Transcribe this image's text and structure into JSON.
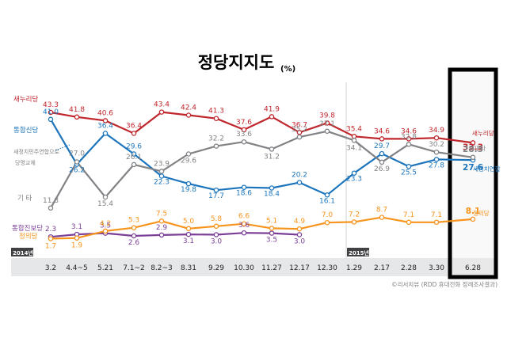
{
  "chart_data": {
    "type": "line",
    "title": "정당지지도",
    "title_unit": "(%)",
    "source": "©리서치뷰 (RDD 휴대전화 정례조사결과)",
    "year_labels": [
      "2014년",
      "2015년"
    ],
    "categories": [
      "3.2",
      "4.4~5",
      "5.21",
      "7.1~2",
      "8.2~3",
      "8.31",
      "9.29",
      "10.30",
      "11.27",
      "12.17",
      "12.30",
      "1.29",
      "2.17",
      "2.28",
      "3.30",
      "6.28"
    ],
    "ylim": [
      0,
      48
    ],
    "grid": false,
    "highlight_category": "6.28",
    "series": [
      {
        "name": "새누리당",
        "color": "#c0272d",
        "values": [
          43.3,
          41.8,
          40.6,
          36.4,
          43.4,
          42.4,
          41.3,
          37.6,
          41.9,
          36.7,
          39.8,
          35.4,
          34.6,
          34.6,
          34.9,
          33.3
        ],
        "labels": [
          "43.3",
          "41.8",
          "40.6",
          "36.4",
          "43.4",
          "42.4",
          "41.3",
          "37.6",
          "41.9",
          "36.7",
          "39.8",
          "35.4",
          "34.6",
          "34.6",
          "34.9",
          "33.3"
        ]
      },
      {
        "name": "통합신당",
        "color": "#1c75bc",
        "values": [
          41.0,
          26.2,
          36.4,
          29.6,
          22.3,
          19.8,
          17.7,
          18.6,
          18.4,
          20.2,
          16.1,
          23.3,
          29.7,
          25.5,
          27.8,
          27.6
        ],
        "labels": [
          "41.0",
          "26.2",
          "36.4",
          "29.6",
          "22.3",
          "19.8",
          "17.7",
          "18.6",
          "18.4",
          "20.2",
          "16.1",
          "23.3",
          "29.7",
          "25.5",
          "27.8",
          "27.6"
        ]
      },
      {
        "name": "기 타",
        "color": "#808285",
        "values": [
          11.8,
          27.0,
          15.4,
          26.1,
          23.9,
          29.6,
          32.2,
          33.6,
          31.2,
          35.2,
          37.1,
          34.1,
          26.9,
          32.8,
          30.2,
          28.5
        ],
        "labels": [
          "11.8",
          "27.0",
          "15.4",
          "26.1",
          "23.9",
          "29.6",
          "32.2",
          "33.6",
          "31.2",
          "35.2",
          "37.1",
          "34.1",
          "26.9",
          "32.8",
          "30.2",
          "28.5"
        ]
      },
      {
        "name": "통합진보당",
        "color": "#7b3f98",
        "values": [
          2.3,
          3.1,
          3.5,
          2.6,
          2.9,
          3.1,
          3.0,
          3.6,
          3.5,
          3.0,
          null,
          null,
          null,
          null,
          null,
          null
        ],
        "labels": [
          "2.3",
          "3.1",
          "3.5",
          "2.6",
          "2.9",
          "3.1",
          "3.0",
          "3.6",
          "3.5",
          "3.0",
          "",
          "",
          "",
          "",
          "",
          ""
        ]
      },
      {
        "name": "정의당",
        "color": "#f7941d",
        "values": [
          1.7,
          1.9,
          4.2,
          5.3,
          7.5,
          5.0,
          5.8,
          6.6,
          5.1,
          4.9,
          7.0,
          7.2,
          8.7,
          7.1,
          7.1,
          8.1
        ],
        "labels": [
          "1.7",
          "1.9",
          "4.2",
          "5.3",
          "7.5",
          "5.0",
          "5.8",
          "6.6",
          "5.1",
          "4.9",
          "7.0",
          "7.2",
          "8.7",
          "7.1",
          "7.1",
          "8.1"
        ]
      }
    ],
    "left_labels": [
      {
        "text": "새누리당",
        "color": "#c0272d"
      },
      {
        "text": "통합신당",
        "color": "#1c75bc"
      },
      {
        "text": "새정치민주연합으로",
        "color": "#808285"
      },
      {
        "text": "당명교체",
        "color": "#808285"
      },
      {
        "text": "기  타",
        "color": "#808285"
      },
      {
        "text": "통합진보당",
        "color": "#7b3f98"
      },
      {
        "text": "정의당",
        "color": "#f7941d"
      }
    ],
    "right_labels": [
      {
        "text": "새누리당",
        "color": "#c0272d"
      },
      {
        "text": "기  타",
        "color": "#808285"
      },
      {
        "text": "새정치연합",
        "color": "#1c75bc"
      },
      {
        "text": "정의당",
        "color": "#f7941d"
      }
    ]
  }
}
